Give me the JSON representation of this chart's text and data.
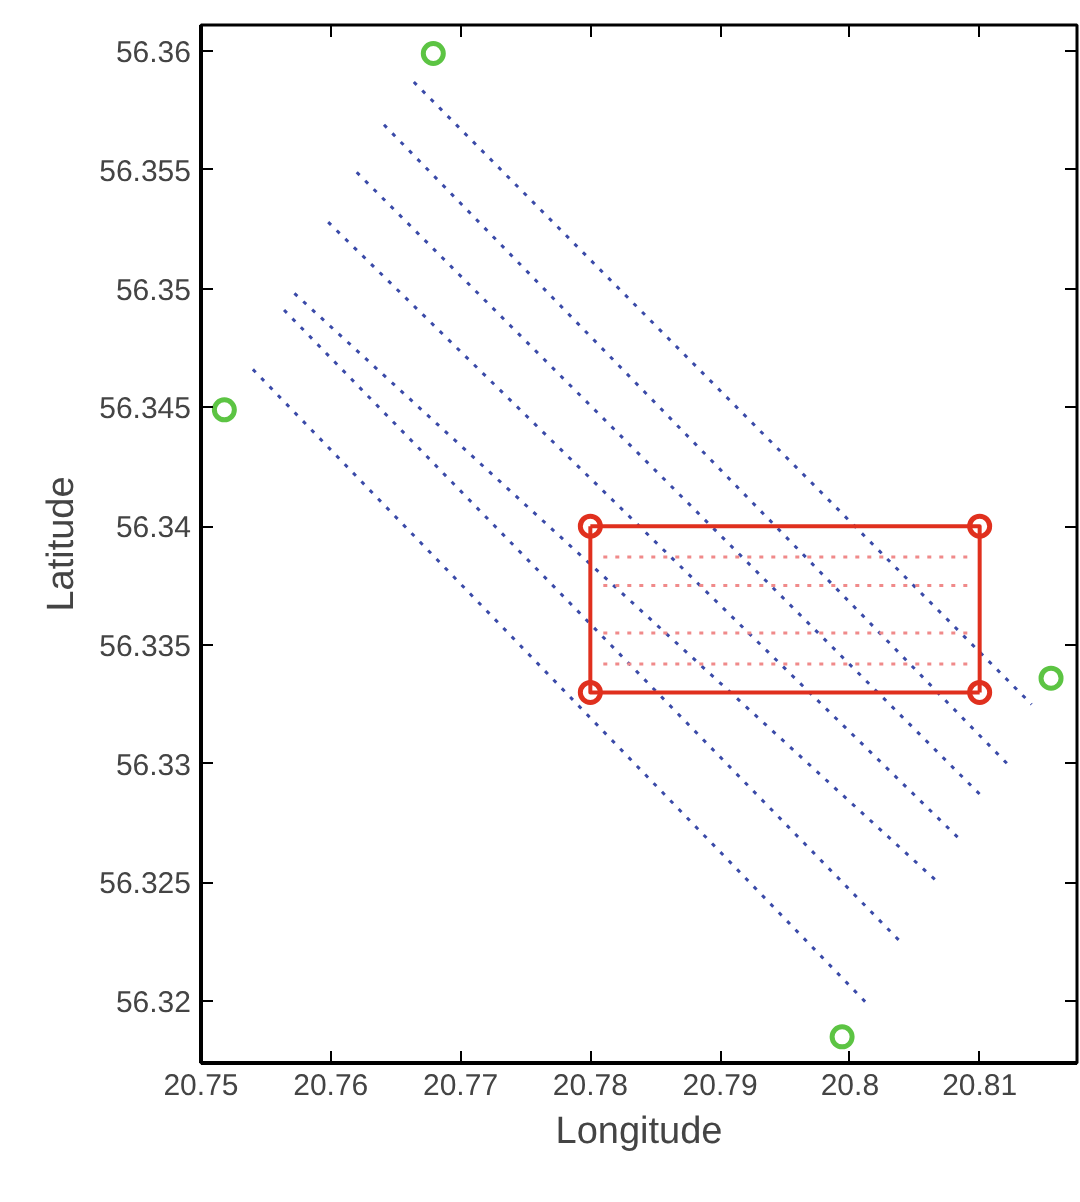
{
  "chart_data": {
    "type": "line",
    "xlabel": "Longitude",
    "ylabel": "Latitude",
    "xlim": [
      20.75,
      20.8175
    ],
    "ylim": [
      56.3174,
      56.3611
    ],
    "xticks": [
      20.75,
      20.76,
      20.77,
      20.78,
      20.79,
      20.8,
      20.81
    ],
    "yticks": [
      56.32,
      56.325,
      56.33,
      56.335,
      56.34,
      56.345,
      56.35,
      56.355,
      56.36
    ],
    "grid": false,
    "series": [
      {
        "type": "line",
        "color": "#3a4aa8",
        "line_style": "dotted",
        "marker": "none",
        "x": [
          20.7664,
          20.814
        ],
        "values": [
          56.3587,
          56.3325
        ]
      },
      {
        "type": "line",
        "color": "#3a4aa8",
        "line_style": "dotted",
        "marker": "none",
        "x": [
          20.7641,
          20.8123
        ],
        "values": [
          56.3569,
          56.3299
        ]
      },
      {
        "type": "line",
        "color": "#3a4aa8",
        "line_style": "dotted",
        "marker": "none",
        "x": [
          20.762,
          20.8104
        ],
        "values": [
          56.3549,
          56.3285
        ]
      },
      {
        "type": "line",
        "color": "#3a4aa8",
        "line_style": "dotted",
        "marker": "none",
        "x": [
          20.7598,
          20.8085
        ],
        "values": [
          56.3528,
          56.3268
        ]
      },
      {
        "type": "line",
        "color": "#3a4aa8",
        "line_style": "dotted",
        "marker": "none",
        "x": [
          20.7572,
          20.8066
        ],
        "values": [
          56.3498,
          56.3251
        ]
      },
      {
        "type": "line",
        "color": "#3a4aa8",
        "line_style": "dotted",
        "marker": "none",
        "x": [
          20.7564,
          20.8039
        ],
        "values": [
          56.3491,
          56.3225
        ]
      },
      {
        "type": "line",
        "color": "#3a4aa8",
        "line_style": "dotted",
        "marker": "none",
        "x": [
          20.754,
          20.8015
        ],
        "values": [
          56.3466,
          56.3198
        ]
      },
      {
        "type": "line",
        "color": "#f08a8a",
        "line_style": "dotted",
        "marker": "none",
        "x": [
          20.781,
          20.8095
        ],
        "values": [
          56.3387,
          56.3387
        ]
      },
      {
        "type": "line",
        "color": "#f08a8a",
        "line_style": "dotted",
        "marker": "none",
        "x": [
          20.781,
          20.8095
        ],
        "values": [
          56.3375,
          56.3375
        ]
      },
      {
        "type": "line",
        "color": "#f08a8a",
        "line_style": "dotted",
        "marker": "none",
        "x": [
          20.781,
          20.8095
        ],
        "values": [
          56.3355,
          56.3355
        ]
      },
      {
        "type": "line",
        "color": "#f08a8a",
        "line_style": "dotted",
        "marker": "none",
        "x": [
          20.781,
          20.8095
        ],
        "values": [
          56.3342,
          56.3342
        ]
      },
      {
        "color": "#e0301e",
        "line_style": "solid",
        "marker": "none",
        "x": [
          20.78,
          20.81,
          20.81
        ],
        "values": [
          56.34,
          56.34,
          56.333
        ]
      },
      {
        "color": "#e0301e",
        "line_style": "solid",
        "marker": "none",
        "x": [
          20.81,
          20.78,
          20.78
        ],
        "values": [
          56.333,
          56.333,
          56.34
        ]
      },
      {
        "type": "scatter",
        "color": "#e0301e",
        "marker": "circle",
        "x": [
          20.78,
          20.81,
          20.81,
          20.78
        ],
        "values": [
          56.34,
          56.34,
          56.333,
          56.333
        ]
      },
      {
        "type": "scatter",
        "color": "#5cc443",
        "marker": "circle",
        "x": [
          20.7518,
          20.7679,
          20.8155,
          20.7994
        ],
        "values": [
          56.3449,
          56.3599,
          56.3336,
          56.3185
        ]
      }
    ]
  }
}
